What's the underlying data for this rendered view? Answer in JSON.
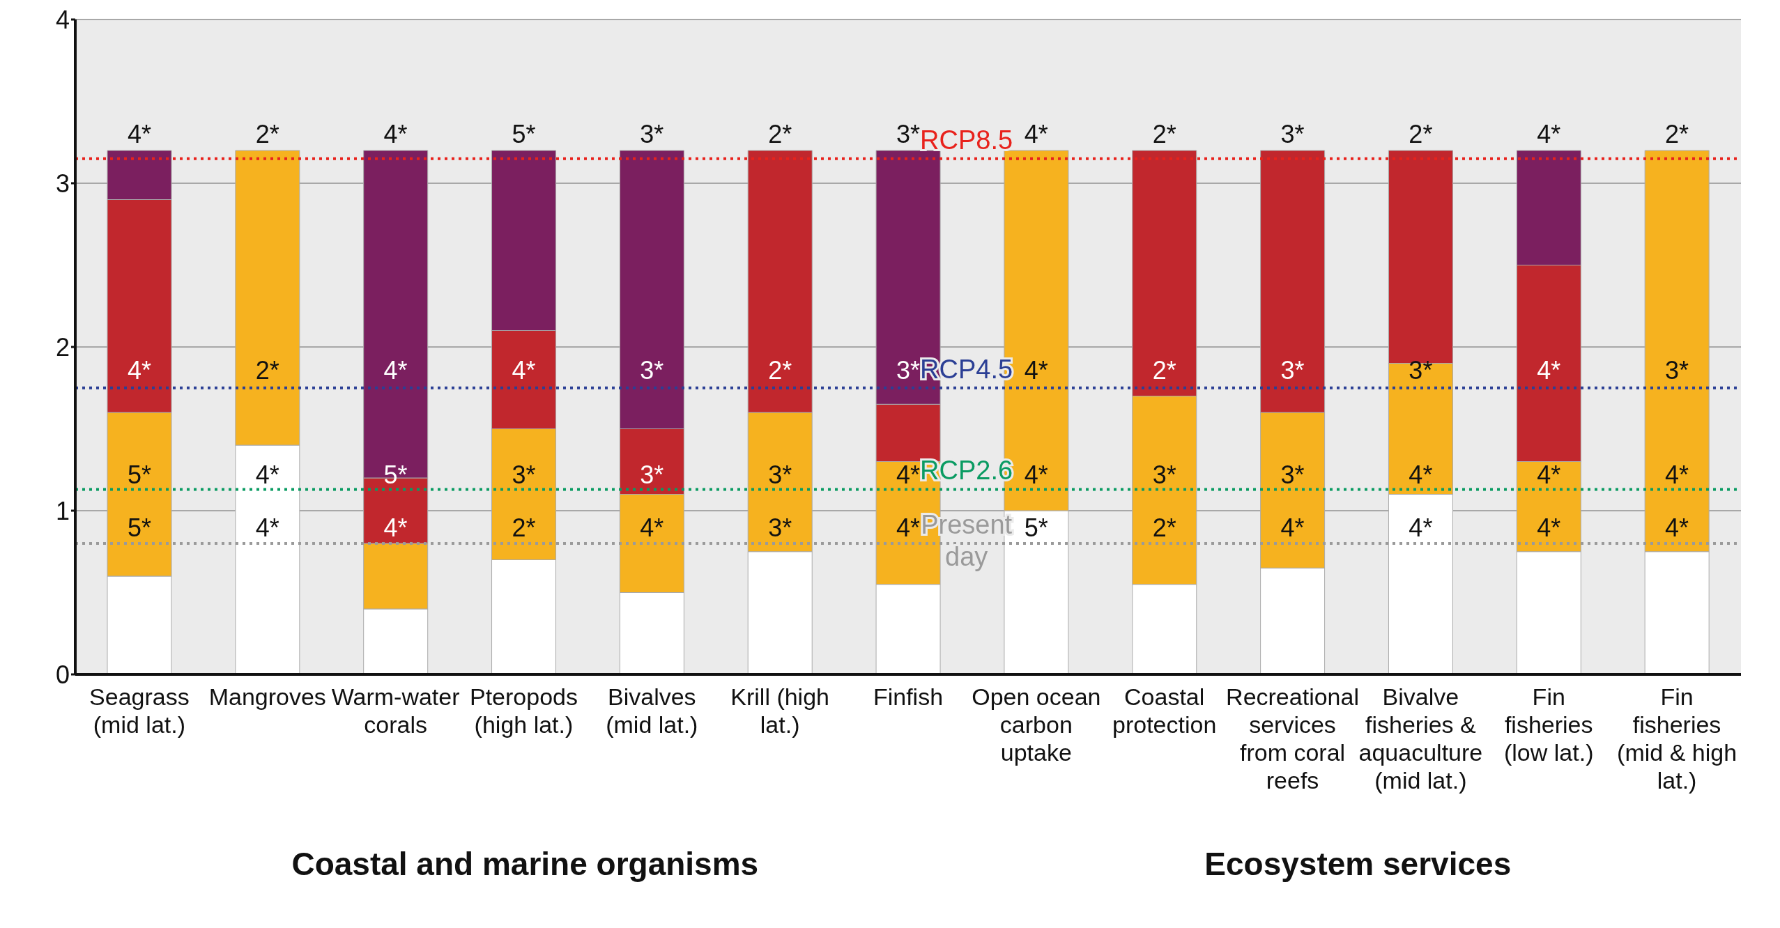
{
  "chart_data": {
    "type": "bar",
    "stacked": true,
    "categories": [
      "Seagrass (mid lat.)",
      "Mangroves",
      "Warm-water corals",
      "Pteropods (high lat.)",
      "Bivalves (mid lat.)",
      "Krill (high lat.)",
      "Finfish",
      "Open ocean carbon uptake",
      "Coastal protection",
      "Recreational services from coral reefs",
      "Bivalve fisheries & aquaculture (mid lat.)",
      "Fin fisheries (low lat.)",
      "Fin fisheries (mid & high lat.)"
    ],
    "series": [
      {
        "color": "#ffffff",
        "values": [
          0.6,
          1.4,
          0.4,
          0.7,
          0.5,
          0.75,
          0.55,
          1.0,
          0.55,
          0.65,
          1.1,
          0.75,
          0.75
        ]
      },
      {
        "color": "#f6b21f",
        "values": [
          1.0,
          1.8,
          0.4,
          0.8,
          0.6,
          0.85,
          0.75,
          2.2,
          1.15,
          0.95,
          0.8,
          0.55,
          2.45
        ]
      },
      {
        "color": "#c1272d",
        "values": [
          1.3,
          0,
          0.4,
          0.6,
          0.4,
          1.6,
          0.35,
          0,
          1.5,
          1.6,
          1.3,
          1.2,
          0
        ]
      },
      {
        "color": "#7b1f5f",
        "values": [
          0.3,
          0,
          2.0,
          1.1,
          1.7,
          0,
          1.55,
          0,
          0,
          0,
          0,
          0.7,
          0
        ]
      }
    ],
    "ylim": [
      0,
      4
    ],
    "yticks": [
      0,
      1,
      2,
      3,
      4
    ],
    "grid": "y",
    "legend": false,
    "ref_lines": [
      {
        "axis": "y",
        "value": 3.15,
        "label": "RCP8.5",
        "color": "#e8221c",
        "line_style": "dotted"
      },
      {
        "axis": "y",
        "value": 1.75,
        "label": "RCP4.5",
        "color": "#2b3f95",
        "line_style": "dotted"
      },
      {
        "axis": "y",
        "value": 1.13,
        "label": "RCP2.6",
        "color": "#0a9b62",
        "line_style": "dotted"
      },
      {
        "axis": "y",
        "value": 0.8,
        "label": "Present day",
        "color": "#9a9a9a",
        "line_style": "dotted"
      }
    ],
    "annotations": [
      "4*",
      "4*",
      "5*",
      "5*",
      "2*",
      "2*",
      "4*",
      "4*",
      "4*",
      "4*",
      "5*",
      "4*",
      "5*",
      "4*",
      "3*",
      "2*",
      "3*",
      "3*",
      "3*",
      "4*",
      "2*",
      "2*",
      "3*",
      "3*",
      "3*",
      "3*",
      "4*",
      "4*",
      "4*",
      "4*",
      "4*",
      "5*",
      "2*",
      "2*",
      "3*",
      "2*",
      "3*",
      "3*",
      "3*",
      "4*",
      "2*",
      "3*",
      "4*",
      "4*",
      "4*",
      "4*",
      "4*",
      "4*",
      "2*",
      "3*",
      "4*",
      "4*",
      "Coastal and marine organisms",
      "Ecosystem services"
    ]
  }
}
